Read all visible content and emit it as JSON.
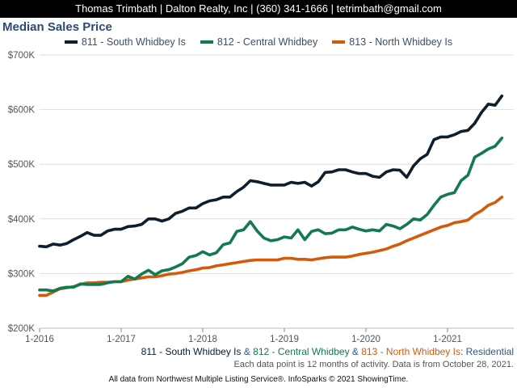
{
  "header": {
    "contact": "Thomas Trimbath | Dalton Realty, Inc | (360) 341-1666 | tetrimbath@gmail.com"
  },
  "colors": {
    "s811": "#0d1f2d",
    "s812": "#117a4f",
    "s813": "#d45a0a",
    "residential": "#2b5a8c"
  },
  "chart_data": {
    "type": "line",
    "title": "Median Sales Price",
    "ylim": [
      200000,
      700000
    ],
    "y_ticks": [
      200000,
      300000,
      400000,
      500000,
      600000,
      700000
    ],
    "y_tick_labels": [
      "$200K",
      "$300K",
      "$400K",
      "$500K",
      "$600K",
      "$700K"
    ],
    "x_ticks": [
      "1-2016",
      "1-2017",
      "1-2018",
      "1-2019",
      "1-2020",
      "1-2021"
    ],
    "x": [
      "1-2016",
      "2-2016",
      "3-2016",
      "4-2016",
      "5-2016",
      "6-2016",
      "7-2016",
      "8-2016",
      "9-2016",
      "10-2016",
      "11-2016",
      "12-2016",
      "1-2017",
      "2-2017",
      "3-2017",
      "4-2017",
      "5-2017",
      "6-2017",
      "7-2017",
      "8-2017",
      "9-2017",
      "10-2017",
      "11-2017",
      "12-2017",
      "1-2018",
      "2-2018",
      "3-2018",
      "4-2018",
      "5-2018",
      "6-2018",
      "7-2018",
      "8-2018",
      "9-2018",
      "10-2018",
      "11-2018",
      "12-2018",
      "1-2019",
      "2-2019",
      "3-2019",
      "4-2019",
      "5-2019",
      "6-2019",
      "7-2019",
      "8-2019",
      "9-2019",
      "10-2019",
      "11-2019",
      "12-2019",
      "1-2020",
      "2-2020",
      "3-2020",
      "4-2020",
      "5-2020",
      "6-2020",
      "7-2020",
      "8-2020",
      "9-2020",
      "10-2020",
      "11-2020",
      "12-2020",
      "1-2021",
      "2-2021",
      "3-2021",
      "4-2021",
      "5-2021",
      "6-2021",
      "7-2021",
      "8-2021",
      "9-2021"
    ],
    "series": [
      {
        "name": "811 - South Whidbey Is",
        "key": "s811",
        "values": [
          350000,
          349000,
          354000,
          352000,
          355000,
          362000,
          368000,
          375000,
          370000,
          370000,
          378000,
          381000,
          381000,
          386000,
          387000,
          390000,
          400000,
          400000,
          396000,
          400000,
          410000,
          414000,
          420000,
          420000,
          428000,
          433000,
          435000,
          440000,
          440000,
          450000,
          458000,
          470000,
          468000,
          465000,
          462000,
          462000,
          462000,
          467000,
          465000,
          467000,
          460000,
          468000,
          485000,
          486000,
          490000,
          490000,
          486000,
          483000,
          483000,
          478000,
          476000,
          486000,
          490000,
          489000,
          476000,
          497000,
          510000,
          518000,
          545000,
          550000,
          550000,
          554000,
          560000,
          562000,
          575000,
          595000,
          610000,
          608000,
          625000
        ]
      },
      {
        "name": "812 - Central Whidbey",
        "key": "s812",
        "values": [
          270000,
          270000,
          268000,
          273000,
          275000,
          275000,
          281000,
          280000,
          280000,
          280000,
          283000,
          285000,
          285000,
          295000,
          290000,
          299000,
          306000,
          298000,
          305000,
          307000,
          312000,
          318000,
          330000,
          333000,
          340000,
          334000,
          338000,
          353000,
          356000,
          377000,
          380000,
          395000,
          378000,
          365000,
          360000,
          362000,
          367000,
          365000,
          380000,
          362000,
          377000,
          380000,
          373000,
          374000,
          380000,
          380000,
          385000,
          381000,
          378000,
          380000,
          378000,
          390000,
          387000,
          382000,
          390000,
          400000,
          398000,
          408000,
          425000,
          440000,
          445000,
          448000,
          470000,
          480000,
          513000,
          520000,
          528000,
          533000,
          548000
        ]
      },
      {
        "name": "813 - North Whidbey Is",
        "key": "s813",
        "values": [
          260000,
          260000,
          266000,
          272000,
          274000,
          276000,
          280000,
          283000,
          283000,
          284000,
          284000,
          285000,
          285000,
          288000,
          290000,
          292000,
          294000,
          294000,
          296000,
          299000,
          300000,
          302000,
          305000,
          307000,
          310000,
          311000,
          314000,
          316000,
          318000,
          320000,
          322000,
          324000,
          325000,
          325000,
          325000,
          325000,
          328000,
          328000,
          326000,
          326000,
          325000,
          327000,
          329000,
          330000,
          330000,
          330000,
          332000,
          335000,
          337000,
          339000,
          342000,
          345000,
          350000,
          354000,
          360000,
          365000,
          370000,
          375000,
          380000,
          385000,
          388000,
          393000,
          395000,
          398000,
          408000,
          415000,
          425000,
          430000,
          440000
        ]
      }
    ],
    "subtitle_parts": {
      "s811": "811 - South Whidbey Is",
      "amp1": " & ",
      "s812": "812 - Central Whidbey",
      "amp2": " & ",
      "s813": "813 - North Whidbey Is",
      "colon": ": ",
      "residential": "Residential"
    },
    "note": "Each data point is 12 months of activity. Data is from October 28, 2021."
  },
  "footer": {
    "text": "All data from Northwest Multiple Listing Service®. InfoSparks © 2021 ShowingTime."
  }
}
